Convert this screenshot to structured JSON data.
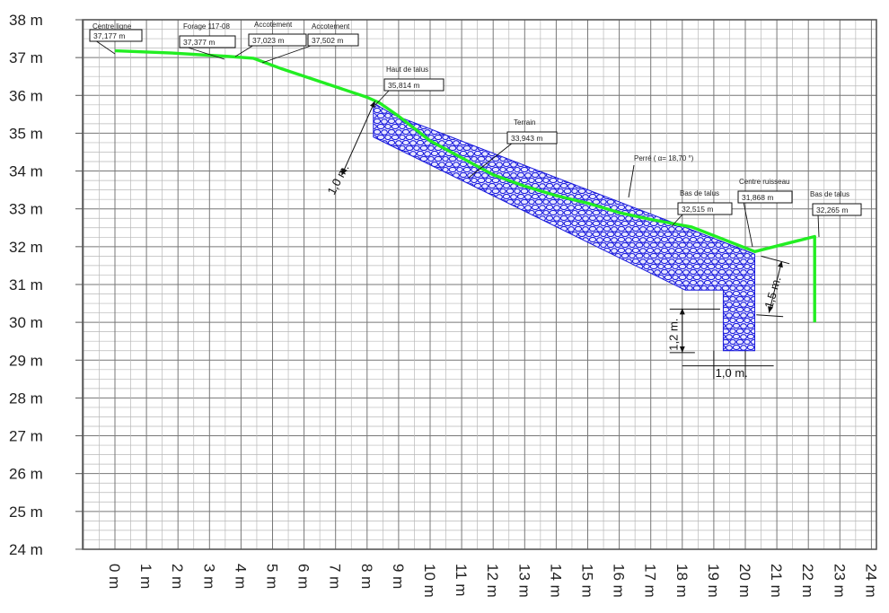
{
  "y_axis": {
    "min": 24,
    "max": 38,
    "tick_labels": [
      "38 m",
      "37 m",
      "36 m",
      "35 m",
      "34 m",
      "33 m",
      "32 m",
      "31 m",
      "30 m",
      "29 m",
      "28 m",
      "27 m",
      "26 m",
      "25 m",
      "24 m"
    ]
  },
  "x_axis": {
    "min": 0,
    "max": 24,
    "tick_labels": [
      "0 m",
      "1 m",
      "2 m",
      "3 m",
      "4 m",
      "5 m",
      "6 m",
      "7 m",
      "8 m",
      "9 m",
      "10 m",
      "11 m",
      "12 m",
      "13 m",
      "14 m",
      "15 m",
      "16 m",
      "17 m",
      "18 m",
      "19 m",
      "20 m",
      "21 m",
      "22 m",
      "23 m",
      "24 m"
    ]
  },
  "colors": {
    "terrain": "#22ee22",
    "riprap": "#1a1adc",
    "grid": "#888888",
    "frame": "#555555"
  },
  "terrain_profile": [
    [
      0,
      37.18
    ],
    [
      1.8,
      37.12
    ],
    [
      3.6,
      37.03
    ],
    [
      4.4,
      36.98
    ],
    [
      5.3,
      36.7
    ],
    [
      8,
      35.95
    ],
    [
      8.4,
      35.8
    ],
    [
      9,
      35.45
    ],
    [
      10,
      34.8
    ],
    [
      11,
      34.35
    ],
    [
      12,
      33.9
    ],
    [
      13,
      33.6
    ],
    [
      14,
      33.35
    ],
    [
      15,
      33.15
    ],
    [
      16,
      32.9
    ],
    [
      17,
      32.72
    ],
    [
      18.3,
      32.52
    ],
    [
      20.3,
      31.87
    ],
    [
      22.2,
      32.27
    ],
    [
      22.2,
      30
    ]
  ],
  "riprap_polygon": [
    [
      8.2,
      35.8
    ],
    [
      8.8,
      35.5
    ],
    [
      20.3,
      31.8
    ],
    [
      20.3,
      29.25
    ],
    [
      19.3,
      29.25
    ],
    [
      19.3,
      30.85
    ],
    [
      18.1,
      30.85
    ],
    [
      8.2,
      34.9
    ]
  ],
  "annotations": [
    {
      "title": "Centre ligne",
      "value": "37,177 m"
    },
    {
      "title": "Forage 117-08",
      "value": "37,377 m"
    },
    {
      "title": "Accotement",
      "value": "37,023 m"
    },
    {
      "title": "Accotement",
      "value": "37,502 m"
    },
    {
      "title": "Haut de talus",
      "value": "35,814 m"
    },
    {
      "title": "Terrain",
      "value": "33,943 m"
    },
    {
      "title": "Perré ( α= 18,70 °)",
      "value": ""
    },
    {
      "title": "Bas de talus",
      "value": "32,515 m"
    },
    {
      "title": "Centre ruisseau",
      "value": "31,868 m"
    },
    {
      "title": "Bas de talus",
      "value": "32,265 m"
    }
  ],
  "dimensions": {
    "riprap_thickness": "1,0 m.",
    "bottom_height": "1,2 m.",
    "ditch_depth": "1,5 m.",
    "bottom_width": "1,0 m."
  }
}
